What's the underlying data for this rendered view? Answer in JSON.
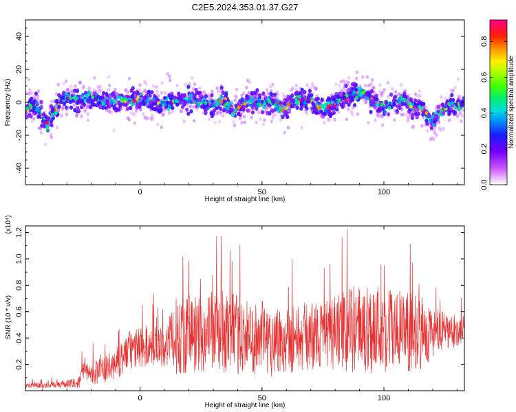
{
  "chart_data": [
    {
      "type": "heatmap",
      "title": "C2E5.2024.353.01.37.G27",
      "xlabel": "Height of straight line (km)",
      "ylabel": "Frequency (Hz)",
      "xlim": [
        -47,
        133
      ],
      "ylim": [
        -50,
        50
      ],
      "x_ticks": [
        "0",
        "50",
        "100"
      ],
      "x_tick_values": [
        0,
        50,
        100
      ],
      "y_ticks": [
        "40",
        "20",
        "0",
        "-20",
        "-40"
      ],
      "y_tick_values": [
        40,
        20,
        0,
        -20,
        -40
      ],
      "colorbar": {
        "label": "Normalized spectral amplitude",
        "ticks": [
          "0.0",
          "0.2",
          "0.4",
          "0.6",
          "0.8"
        ],
        "tick_values": [
          0.0,
          0.2,
          0.4,
          0.6,
          0.8
        ],
        "range": [
          0,
          0.92
        ]
      },
      "ridge": {
        "x": [
          -47,
          -43,
          -40,
          -38,
          -35,
          -32,
          -28,
          -25,
          -22,
          -20,
          -15,
          -10,
          -5,
          0,
          5,
          10,
          15,
          20,
          25,
          30,
          35,
          38,
          42,
          45,
          50,
          55,
          58,
          62,
          65,
          70,
          72,
          75,
          80,
          85,
          90,
          92,
          95,
          100,
          105,
          110,
          112,
          115,
          118,
          120,
          125,
          130,
          133
        ],
        "freq": [
          -4,
          -2,
          -9,
          -14,
          -6,
          2,
          3,
          1,
          2,
          3,
          1,
          0,
          1,
          2,
          0,
          -1,
          1,
          2,
          0,
          -1,
          1,
          -6,
          -1,
          1,
          -1,
          1,
          -5,
          0,
          2,
          1,
          -3,
          -4,
          0,
          4,
          6,
          5,
          1,
          -2,
          1,
          -1,
          -4,
          -3,
          -8,
          -12,
          -3,
          -2,
          0
        ],
        "spread_hz": 8,
        "peak_amplitude": 0.9
      }
    },
    {
      "type": "line",
      "title": "",
      "xlabel": "Height of straight line (km)",
      "ylabel": "SNR (10 * v/v)",
      "scale_label": "(x10⁴)",
      "xlim": [
        -47,
        133
      ],
      "ylim": [
        0,
        1.25
      ],
      "x_ticks": [
        "0",
        "50",
        "100"
      ],
      "x_tick_values": [
        0,
        50,
        100
      ],
      "y_ticks": [
        "0.2",
        "0.4",
        "0.6",
        "0.8",
        "1.0",
        "1.2"
      ],
      "y_tick_values": [
        0.2,
        0.4,
        0.6,
        0.8,
        1.0,
        1.2
      ],
      "color": "#e83232",
      "series": [
        {
          "x": [
            -47,
            -40,
            -30,
            -25,
            -24,
            -20,
            -15,
            -10,
            -5,
            0,
            5,
            10,
            12,
            15,
            20,
            25,
            30,
            35,
            40,
            45,
            50,
            55,
            60,
            65,
            70,
            75,
            80,
            85,
            90,
            95,
            100,
            105,
            110,
            115,
            120,
            125,
            130,
            133
          ],
          "mean": [
            0.04,
            0.04,
            0.05,
            0.06,
            0.13,
            0.14,
            0.15,
            0.2,
            0.3,
            0.33,
            0.34,
            0.34,
            0.36,
            0.42,
            0.44,
            0.43,
            0.45,
            0.45,
            0.42,
            0.4,
            0.4,
            0.38,
            0.4,
            0.4,
            0.42,
            0.42,
            0.44,
            0.46,
            0.47,
            0.48,
            0.47,
            0.46,
            0.44,
            0.44,
            0.44,
            0.44,
            0.45,
            0.48
          ],
          "amp": [
            0.02,
            0.02,
            0.03,
            0.04,
            0.08,
            0.09,
            0.1,
            0.12,
            0.15,
            0.16,
            0.16,
            0.16,
            0.2,
            0.3,
            0.32,
            0.3,
            0.3,
            0.32,
            0.3,
            0.28,
            0.28,
            0.28,
            0.27,
            0.26,
            0.26,
            0.25,
            0.28,
            0.32,
            0.34,
            0.36,
            0.34,
            0.33,
            0.3,
            0.28,
            0.2,
            0.15,
            0.12,
            0.1
          ],
          "peak_max": 1.25
        }
      ]
    }
  ]
}
